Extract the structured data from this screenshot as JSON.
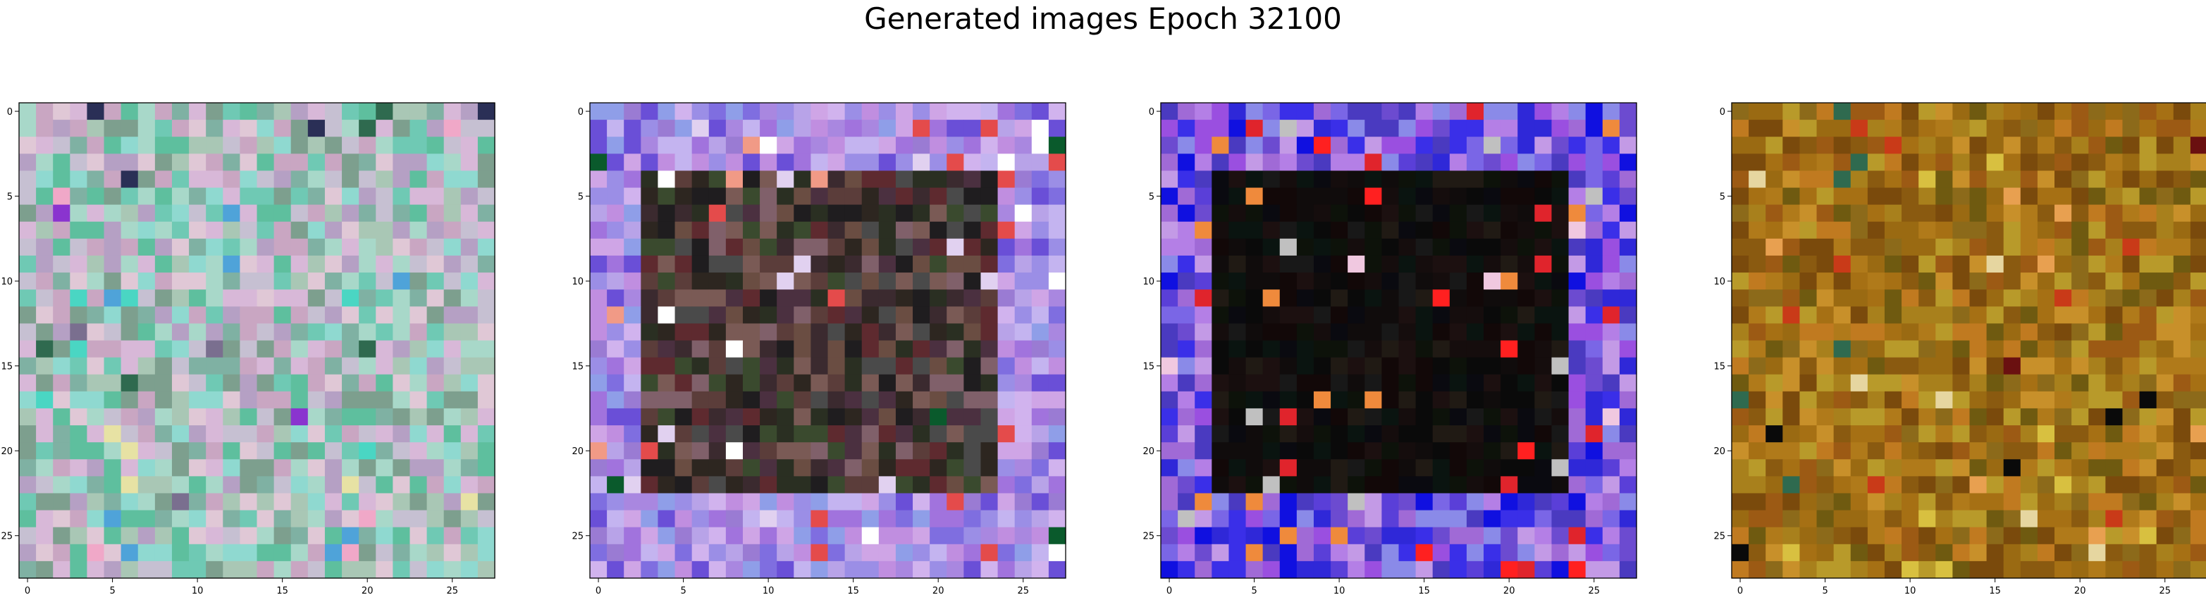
{
  "title": "Generated images Epoch 32100",
  "chart_data": [
    {
      "type": "heatmap",
      "name": "image-1",
      "grid": [
        28,
        28
      ],
      "xlim": [
        -0.5,
        27.5
      ],
      "ylim": [
        27.5,
        -0.5
      ],
      "xticks": [
        0,
        5,
        10,
        15,
        20,
        25
      ],
      "yticks": [
        0,
        5,
        10,
        15,
        20,
        25
      ],
      "palette": [
        "#6fc9b4",
        "#a9c7b5",
        "#c6c0d2",
        "#8fd9d0",
        "#d8b8d8",
        "#7fb1a3",
        "#c9a6c2",
        "#a8d8c9",
        "#5ebf9e",
        "#b5a0c4",
        "#e0c8d6",
        "#7d9f8e"
      ],
      "accents": [
        "#4ad6c3",
        "#7a6f8f",
        "#2f6a4f",
        "#8a34cf",
        "#2a2f56",
        "#f0a8c8",
        "#e7e2a4",
        "#4fa3d9"
      ],
      "frame_palette": [],
      "center_palette": []
    },
    {
      "type": "heatmap",
      "name": "image-2",
      "grid": [
        28,
        28
      ],
      "xlim": [
        -0.5,
        27.5
      ],
      "ylim": [
        27.5,
        -0.5
      ],
      "xticks": [
        0,
        5,
        10,
        15,
        20,
        25
      ],
      "yticks": [
        0,
        5,
        10,
        15,
        20,
        25
      ],
      "palette": [],
      "accents": [
        "#e44b4b",
        "#f19a86",
        "#e1d1f0",
        "#0a5a2c",
        "#ffffff"
      ],
      "frame_palette": [
        "#b8a3e8",
        "#c08ee0",
        "#9b8ee6",
        "#a987e0",
        "#cfa5e6",
        "#7f6ee0",
        "#d1b3ee",
        "#9a7bd3",
        "#8f9ee8",
        "#6a4fd7",
        "#c4b4f0",
        "#a173dd"
      ],
      "center_palette": [
        "#3b2a2f",
        "#5b3d3a",
        "#2a2f22",
        "#6a4d42",
        "#4b3040",
        "#1f1d1f",
        "#7a5a55",
        "#3a4a2e",
        "#5e2a2f",
        "#4a4a4a",
        "#80606a",
        "#2d2620"
      ]
    },
    {
      "type": "heatmap",
      "name": "image-3",
      "grid": [
        28,
        28
      ],
      "xlim": [
        -0.5,
        27.5
      ],
      "ylim": [
        27.5,
        -0.5
      ],
      "xticks": [
        0,
        5,
        10,
        15,
        20,
        25
      ],
      "yticks": [
        0,
        5,
        10,
        15,
        20,
        25
      ],
      "palette": [],
      "accents": [
        "#e0242c",
        "#ef8a3c",
        "#f0c8e0",
        "#c0c0c0",
        "#ff2020"
      ],
      "frame_palette": [
        "#7a66e6",
        "#9a4fe0",
        "#5a3fd8",
        "#2f28d8",
        "#b47fe6",
        "#6c4bd0",
        "#3a2fe8",
        "#8a8ae8",
        "#c39ae6",
        "#4a3ac0",
        "#1010e0",
        "#a06ad6"
      ],
      "center_palette": [
        "#0a0a0a",
        "#150d0d",
        "#0d120a",
        "#1c1010",
        "#0a0a10",
        "#201a14",
        "#120808",
        "#0a1410",
        "#181818",
        "#100c0c"
      ]
    },
    {
      "type": "heatmap",
      "name": "image-4",
      "grid": [
        28,
        28
      ],
      "xlim": [
        -0.5,
        27.5
      ],
      "ylim": [
        27.5,
        -0.5
      ],
      "xticks": [
        0,
        5,
        10,
        15,
        20,
        25
      ],
      "yticks": [
        0,
        5,
        10,
        15,
        20,
        25
      ],
      "palette": [
        "#b07a1a",
        "#9a6a12",
        "#c8902a",
        "#8a5a10",
        "#a8801c",
        "#7a4a0c",
        "#b89a2a",
        "#9c5a14",
        "#c07a20",
        "#8c6a1a",
        "#a67014",
        "#6f5a10"
      ],
      "accents": [
        "#6a1010",
        "#d8c040",
        "#0a0a0a",
        "#e8a050",
        "#2f6a4f",
        "#c93a18",
        "#e6d6a0"
      ],
      "frame_palette": [],
      "center_palette": []
    }
  ]
}
